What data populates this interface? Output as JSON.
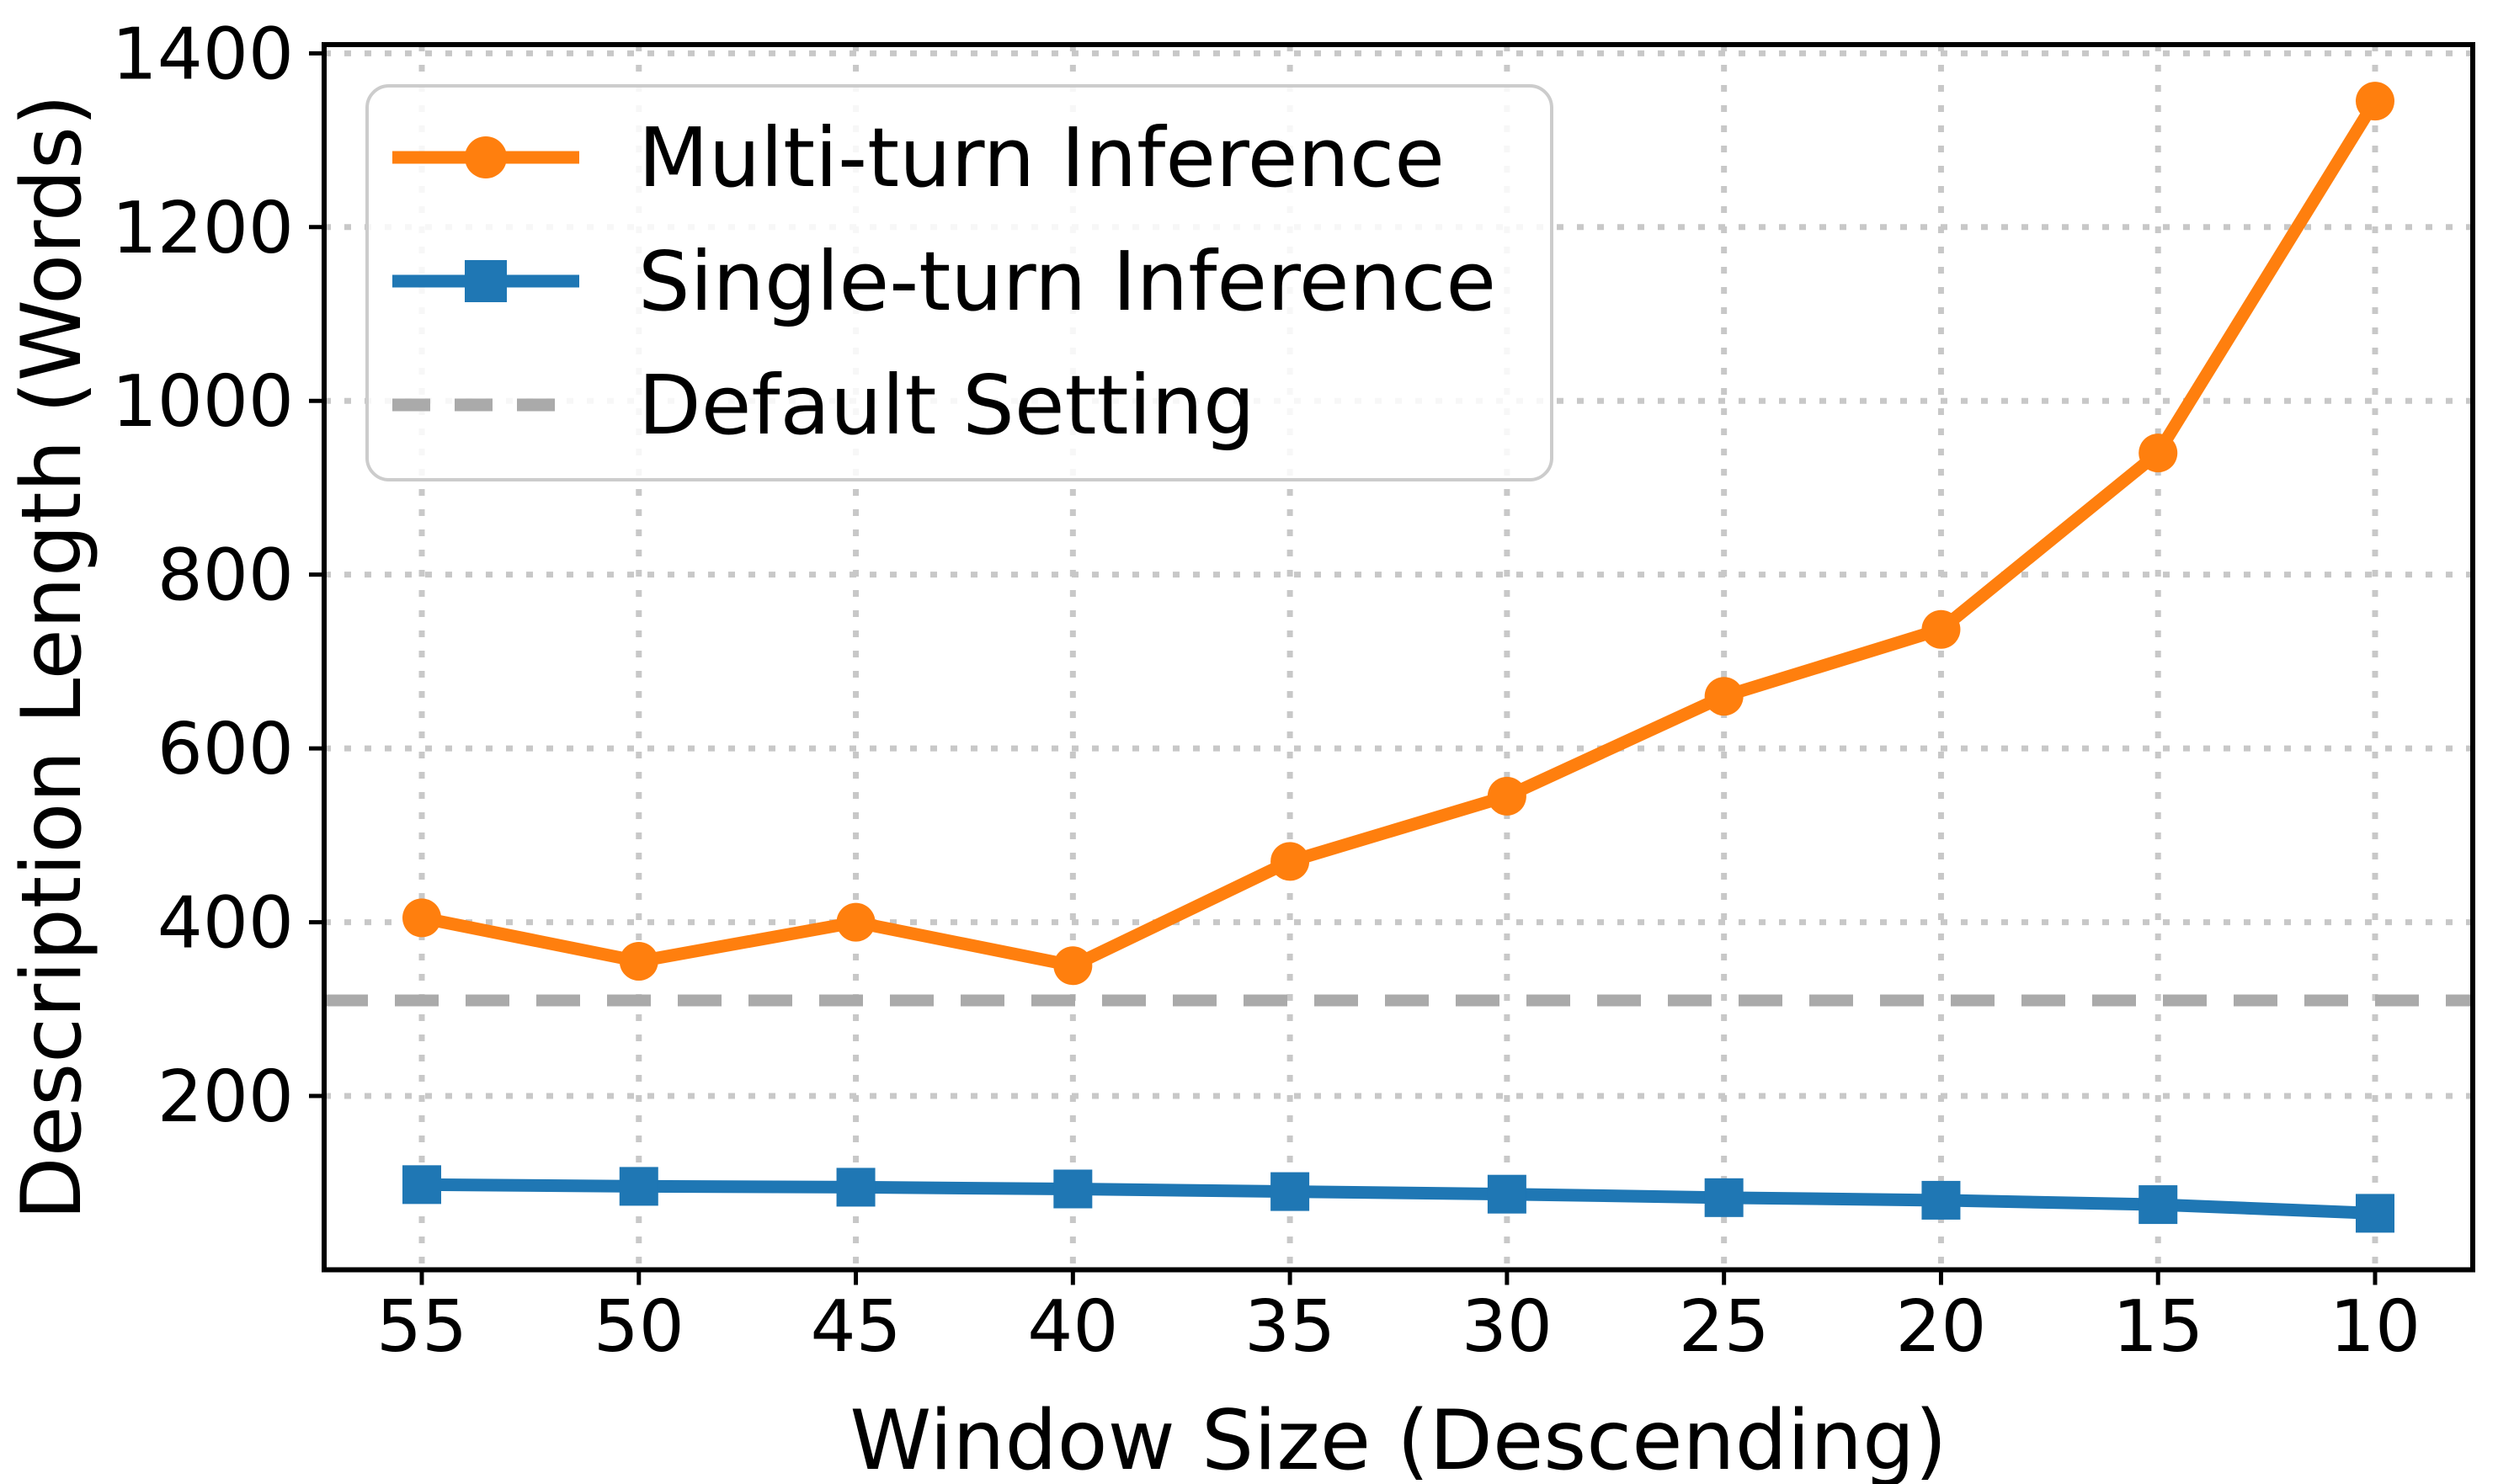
{
  "chart_data": {
    "type": "line",
    "title": "",
    "xlabel": "Window Size (Descending)",
    "ylabel": "Description Length (Words)",
    "categories": [
      55,
      50,
      45,
      40,
      35,
      30,
      25,
      20,
      15,
      10
    ],
    "yticks": [
      200,
      400,
      600,
      800,
      1000,
      1200,
      1400
    ],
    "ylim": [
      0,
      1410
    ],
    "grid": "dotted, both axes",
    "legend_position": "upper left",
    "series": [
      {
        "name": "Multi-turn Inference",
        "color": "#ff7f0e",
        "marker": "circle",
        "values": [
          405,
          355,
          400,
          350,
          470,
          545,
          660,
          737,
          940,
          1345
        ]
      },
      {
        "name": "Single-turn Inference",
        "color": "#1f77b4",
        "marker": "square",
        "values": [
          98,
          96,
          95,
          93,
          90,
          87,
          83,
          80,
          75,
          65
        ]
      }
    ],
    "reference_line": {
      "name": "Default Setting",
      "value": 310,
      "color": "#aaaaaa",
      "style": "dashed"
    },
    "colors": {
      "grid": "#c8c8c8",
      "spine": "#000000",
      "legend_border": "#cccccc",
      "text": "#000000"
    }
  }
}
